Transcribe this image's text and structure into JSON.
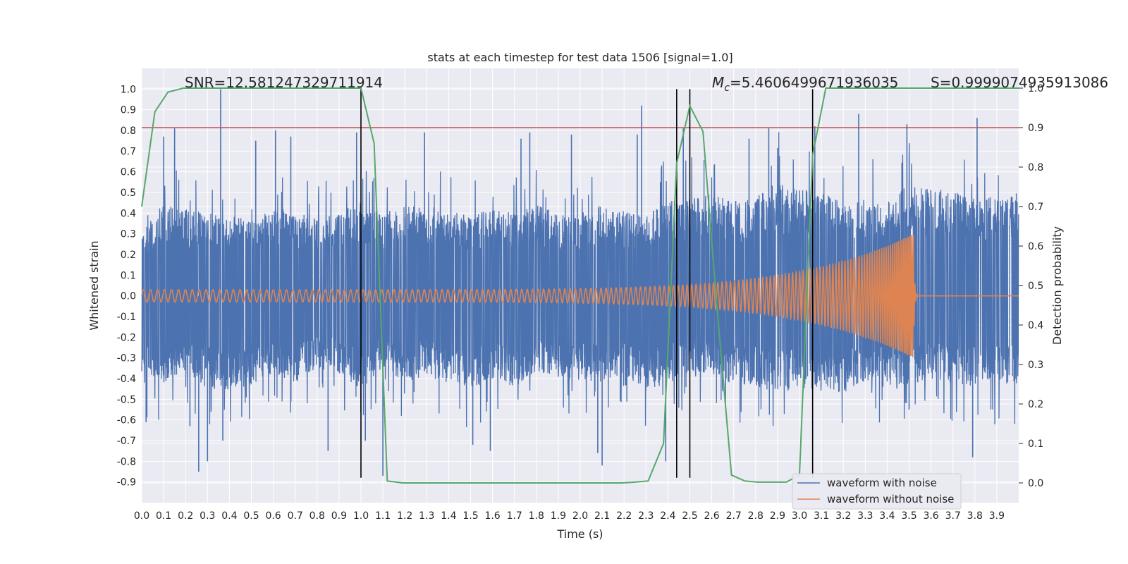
{
  "chart_data": {
    "type": "line",
    "title": "stats at each timestep for test data 1506 [signal=1.0]",
    "xlabel": "Time (s)",
    "ylabel": "Whitened strain",
    "ylabel_right": "Detection probability",
    "xlim": [
      0.0,
      4.0
    ],
    "ylim": [
      -1.0,
      1.1
    ],
    "ylim_right": [
      -0.05,
      1.05
    ],
    "x_ticks": [
      "0.0",
      "0.1",
      "0.2",
      "0.3",
      "0.4",
      "0.5",
      "0.6",
      "0.7",
      "0.8",
      "0.9",
      "1.0",
      "1.1",
      "1.2",
      "1.3",
      "1.4",
      "1.5",
      "1.6",
      "1.7",
      "1.8",
      "1.9",
      "2.0",
      "2.1",
      "2.2",
      "2.3",
      "2.4",
      "2.5",
      "2.6",
      "2.7",
      "2.8",
      "2.9",
      "3.0",
      "3.1",
      "3.2",
      "3.3",
      "3.4",
      "3.5",
      "3.6",
      "3.7",
      "3.8",
      "3.9"
    ],
    "y_ticks": [
      "-0.9",
      "-0.8",
      "-0.7",
      "-0.6",
      "-0.5",
      "-0.4",
      "-0.3",
      "-0.2",
      "-0.1",
      "0.0",
      "0.1",
      "0.2",
      "0.3",
      "0.4",
      "0.5",
      "0.6",
      "0.7",
      "0.8",
      "0.9",
      "1.0"
    ],
    "y_ticks_right": [
      "0.0",
      "0.1",
      "0.2",
      "0.3",
      "0.4",
      "0.5",
      "0.6",
      "0.7",
      "0.8",
      "0.9",
      "1.0"
    ],
    "annotations": {
      "snr": "SNR=12.581247329711914",
      "mc_symbol": "M",
      "mc_sub": "c",
      "mc_value": "=5.4606499671936035",
      "s": "S=0.9999074935913086"
    },
    "threshold_right": 0.9,
    "vlines_x": [
      1.0,
      2.44,
      2.5,
      3.06
    ],
    "vlines_ymin": -0.88,
    "vlines_ymax": 1.0,
    "series": [
      {
        "name": "waveform with noise",
        "color": "#4c72b0",
        "envelope_top": [
          0.31,
          0.45,
          0.42,
          0.4,
          0.4,
          0.36,
          0.43,
          0.41,
          0.37,
          0.42,
          0.45,
          0.41,
          0.43,
          0.44,
          0.41,
          0.39,
          0.42,
          0.4,
          0.44,
          0.4,
          0.4,
          0.45,
          0.41,
          0.38,
          0.48,
          0.47,
          0.51,
          0.46,
          0.48,
          0.55,
          0.52,
          0.5,
          0.45,
          0.47,
          0.45,
          0.55,
          0.52,
          0.51,
          0.47,
          0.5
        ],
        "envelope_bottom": [
          -0.43,
          -0.42,
          -0.36,
          -0.45,
          -0.46,
          -0.44,
          -0.37,
          -0.43,
          -0.35,
          -0.38,
          -0.45,
          -0.35,
          -0.42,
          -0.39,
          -0.42,
          -0.46,
          -0.4,
          -0.44,
          -0.37,
          -0.4,
          -0.41,
          -0.42,
          -0.38,
          -0.46,
          -0.42,
          -0.39,
          -0.4,
          -0.43,
          -0.44,
          -0.47,
          -0.46,
          -0.46,
          -0.47,
          -0.41,
          -0.45,
          -0.45,
          -0.41,
          -0.42,
          -0.44,
          -0.43
        ],
        "spikes": [
          [
            0.02,
            -0.61
          ],
          [
            0.1,
            0.77
          ],
          [
            0.15,
            0.81
          ],
          [
            0.22,
            -0.63
          ],
          [
            0.26,
            -0.85
          ],
          [
            0.3,
            -0.8
          ],
          [
            0.36,
            1.0
          ],
          [
            0.37,
            -0.7
          ],
          [
            0.52,
            0.75
          ],
          [
            0.61,
            0.8
          ],
          [
            0.68,
            0.77
          ],
          [
            0.85,
            -0.75
          ],
          [
            0.98,
            0.79
          ],
          [
            1.02,
            -0.7
          ],
          [
            1.1,
            -0.87
          ],
          [
            1.29,
            0.79
          ],
          [
            1.51,
            -0.72
          ],
          [
            1.59,
            -0.75
          ],
          [
            1.73,
            0.76
          ],
          [
            1.77,
            0.79
          ],
          [
            1.96,
            0.78
          ],
          [
            2.08,
            -0.76
          ],
          [
            2.1,
            -0.82
          ],
          [
            2.26,
            0.78
          ],
          [
            2.28,
            0.92
          ],
          [
            2.39,
            -0.8
          ],
          [
            2.47,
            0.81
          ],
          [
            2.77,
            0.76
          ],
          [
            2.86,
            0.81
          ],
          [
            3.07,
            0.82
          ],
          [
            3.27,
            0.88
          ],
          [
            3.49,
            0.83
          ],
          [
            3.5,
            -0.55
          ],
          [
            3.79,
            -0.78
          ],
          [
            3.81,
            0.86
          ]
        ]
      },
      {
        "name": "waveform without noise",
        "color": "#dd8452",
        "amplitude_start": 0.03,
        "amplitude_end": 0.3,
        "f_start_hz": 31,
        "merger_time": 3.52
      },
      {
        "name": "detection probability",
        "color": "#55a868",
        "axis": "right",
        "x": [
          0.0,
          0.06,
          0.12,
          0.19,
          0.25,
          0.31,
          0.38,
          0.44,
          0.5,
          0.56,
          0.62,
          0.69,
          0.75,
          0.81,
          0.88,
          0.94,
          1.0,
          1.06,
          1.12,
          1.19,
          1.25,
          1.31,
          1.38,
          1.44,
          1.5,
          1.56,
          1.62,
          1.69,
          1.75,
          1.81,
          1.88,
          1.94,
          2.0,
          2.06,
          2.12,
          2.19,
          2.25,
          2.31,
          2.38,
          2.44,
          2.5,
          2.56,
          2.62,
          2.69,
          2.75,
          2.81,
          2.88,
          2.94,
          3.0,
          3.06,
          3.12,
          3.19,
          3.25,
          3.31,
          3.38,
          3.44,
          3.5,
          3.56,
          3.62,
          3.69,
          3.75,
          3.81,
          3.88,
          3.94,
          4.0
        ],
        "y": [
          0.7,
          0.94,
          0.99,
          1.0,
          1.0,
          1.0,
          1.0,
          1.0,
          1.0,
          1.0,
          1.0,
          1.0,
          1.0,
          1.0,
          1.0,
          1.0,
          1.0,
          0.86,
          0.005,
          0.0,
          0.0,
          0.0,
          0.0,
          0.0,
          0.0,
          0.0,
          0.0,
          0.0,
          0.0,
          0.0,
          0.0,
          0.0,
          0.0,
          0.0,
          0.0,
          0.0,
          0.002,
          0.005,
          0.1,
          0.81,
          0.955,
          0.89,
          0.47,
          0.02,
          0.005,
          0.002,
          0.002,
          0.002,
          0.02,
          0.83,
          1.0,
          1.0,
          1.0,
          1.0,
          1.0,
          1.0,
          1.0,
          1.0,
          1.0,
          1.0,
          1.0,
          1.0,
          1.0,
          1.0,
          1.0
        ]
      }
    ],
    "legend": {
      "position": "lower-right",
      "entries": [
        "waveform with noise",
        "waveform without noise"
      ]
    },
    "grid": true
  }
}
